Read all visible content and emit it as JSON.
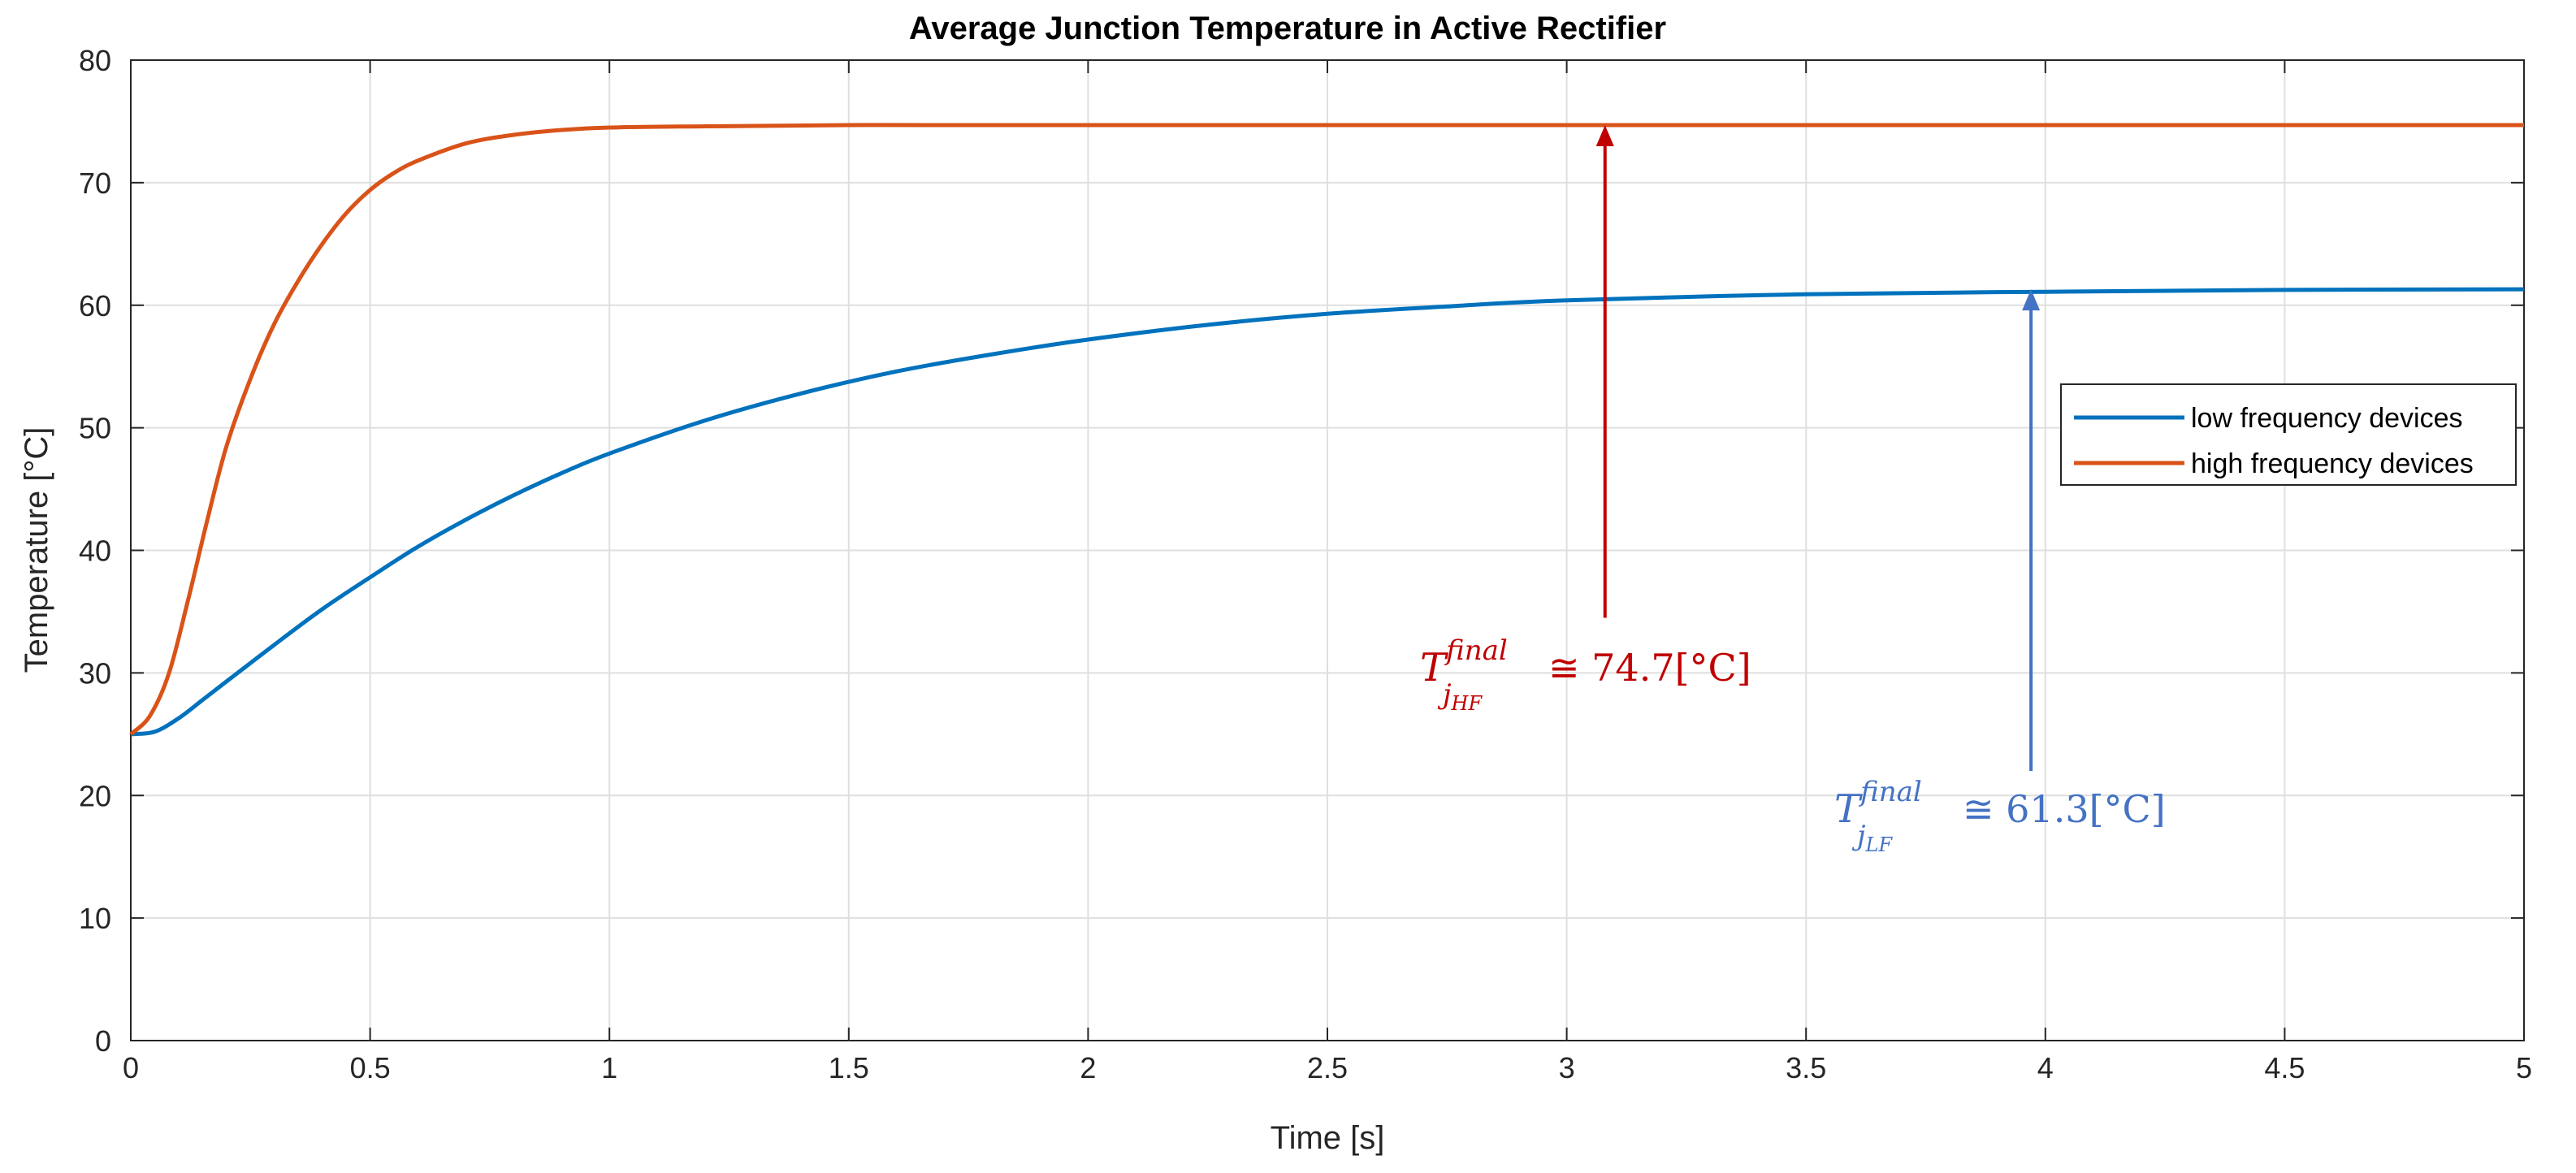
{
  "chart_data": {
    "type": "line",
    "title": "Average Junction Temperature in Active Rectifier",
    "xlabel": "Time [s]",
    "ylabel": "Temperature [°C]",
    "xlim": [
      0,
      5
    ],
    "ylim": [
      0,
      80
    ],
    "grid": true,
    "legend_position": "right",
    "x_ticks": [
      0,
      0.5,
      1,
      1.5,
      2,
      2.5,
      3,
      3.5,
      4,
      4.5,
      5
    ],
    "x_tick_labels": [
      "0",
      "0.5",
      "1",
      "1.5",
      "2",
      "2.5",
      "3",
      "3.5",
      "4",
      "4.5",
      "5"
    ],
    "y_ticks": [
      0,
      10,
      20,
      30,
      40,
      50,
      60,
      70,
      80
    ],
    "y_tick_labels": [
      "0",
      "10",
      "20",
      "30",
      "40",
      "50",
      "60",
      "70",
      "80"
    ],
    "series": [
      {
        "name": "low frequency devices",
        "color": "#0072BD",
        "x": [
          0,
          0.05,
          0.1,
          0.15,
          0.2,
          0.3,
          0.4,
          0.5,
          0.6,
          0.7,
          0.8,
          0.9,
          1.0,
          1.2,
          1.4,
          1.6,
          1.8,
          2.0,
          2.25,
          2.5,
          2.75,
          3.0,
          3.5,
          4.0,
          4.5,
          5.0
        ],
        "values": [
          25.0,
          25.2,
          26.3,
          27.8,
          29.3,
          32.3,
          35.2,
          37.8,
          40.3,
          42.5,
          44.5,
          46.3,
          47.9,
          50.6,
          52.8,
          54.6,
          56.0,
          57.2,
          58.4,
          59.3,
          59.9,
          60.4,
          60.9,
          61.1,
          61.25,
          61.3
        ]
      },
      {
        "name": "high frequency devices",
        "color": "#D95319",
        "x": [
          0,
          0.04,
          0.08,
          0.12,
          0.16,
          0.2,
          0.25,
          0.3,
          0.35,
          0.4,
          0.45,
          0.5,
          0.55,
          0.6,
          0.7,
          0.8,
          0.9,
          1.0,
          1.2,
          1.5,
          2.0,
          3.0,
          4.0,
          5.0
        ],
        "values": [
          25.0,
          26.5,
          30.0,
          36.0,
          42.5,
          48.5,
          54.0,
          58.5,
          62.0,
          65.0,
          67.5,
          69.4,
          70.8,
          71.8,
          73.2,
          73.9,
          74.3,
          74.5,
          74.6,
          74.7,
          74.7,
          74.7,
          74.7,
          74.7
        ]
      }
    ],
    "annotations": [
      {
        "id": "hf",
        "color": "#C00000",
        "symbol": "T",
        "superscript": "final",
        "subscript_j": "j",
        "subscript_tail": "HF",
        "text": "≅ 74.7[°C]",
        "arrow_x": 3.08,
        "arrow_from_y": 34.5,
        "arrow_to_y": 74.7
      },
      {
        "id": "lf",
        "color": "#4472C4",
        "symbol": "T",
        "superscript": "final",
        "subscript_j": "j",
        "subscript_tail": "LF",
        "text": "≅ 61.3[°C]",
        "arrow_x": 3.97,
        "arrow_from_y": 22.0,
        "arrow_to_y": 61.3
      }
    ]
  }
}
